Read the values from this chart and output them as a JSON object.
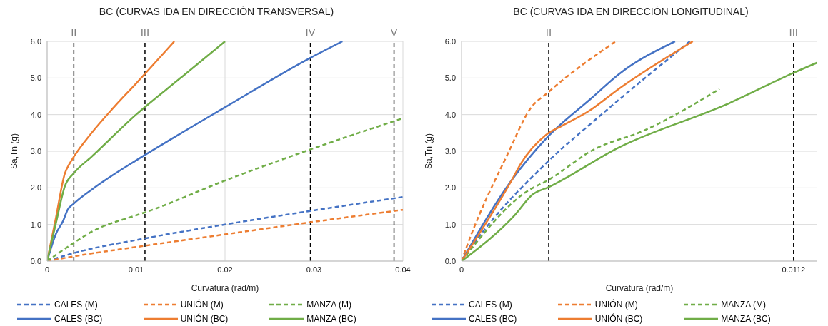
{
  "chart_data": [
    {
      "type": "line",
      "title": "BC (CURVAS IDA EN DIRECCIÓN TRANSVERSAL)",
      "xlabel": "Curvatura  (rad/m)",
      "ylabel": "Sa,Tn (g)",
      "xlim": [
        0,
        0.04
      ],
      "xticks": [
        0,
        0.01,
        0.02,
        0.03,
        0.04
      ],
      "ylim": [
        0,
        6
      ],
      "yticks": [
        {
          "value": 0,
          "label": "0.0"
        },
        {
          "value": 1,
          "label": "1.0"
        },
        {
          "value": 2,
          "label": "2.0"
        },
        {
          "value": 3,
          "label": "3.0"
        },
        {
          "value": 4,
          "label": "4.0"
        },
        {
          "value": 5,
          "label": "5.0"
        },
        {
          "value": 6,
          "label": "6.0"
        }
      ],
      "grid": true,
      "legend": "bottom",
      "marker": "none",
      "ref_lines": [
        {
          "axis": "x",
          "value": 0.003,
          "label": "II",
          "line_style": "dashed",
          "color": "#000000"
        },
        {
          "axis": "x",
          "value": 0.011,
          "label": "III",
          "line_style": "dashed",
          "color": "#000000"
        },
        {
          "axis": "x",
          "value": 0.0296,
          "label": "IV",
          "line_style": "dashed",
          "color": "#000000"
        },
        {
          "axis": "x",
          "value": 0.039,
          "label": "V",
          "line_style": "dashed",
          "color": "#000000"
        }
      ],
      "series": [
        {
          "name": "CALES (M)",
          "color": "#4472c4",
          "line_style": "dashed",
          "x": [
            0,
            0.003,
            0.011,
            0.02,
            0.0296,
            0.04
          ],
          "values": [
            0,
            0.22,
            0.62,
            1.0,
            1.37,
            1.75
          ]
        },
        {
          "name": "UNIÓN (M)",
          "color": "#ed7d31",
          "line_style": "dashed",
          "x": [
            0,
            0.003,
            0.011,
            0.02,
            0.0296,
            0.04
          ],
          "values": [
            0,
            0.13,
            0.42,
            0.73,
            1.06,
            1.4
          ]
        },
        {
          "name": "MANZA (M)",
          "color": "#70ad47",
          "line_style": "dashed",
          "x": [
            0,
            0.003,
            0.005,
            0.01,
            0.011,
            0.02,
            0.0296,
            0.04
          ],
          "values": [
            0,
            0.5,
            0.8,
            1.25,
            1.33,
            2.2,
            3.05,
            3.9
          ]
        },
        {
          "name": "CALES (BC)",
          "color": "#4472c4",
          "line_style": "solid",
          "x": [
            0,
            0.001,
            0.0018,
            0.0023,
            0.003,
            0.005,
            0.01,
            0.011,
            0.02,
            0.0296,
            0.0332
          ],
          "values": [
            0,
            0.75,
            1.1,
            1.4,
            1.57,
            1.95,
            2.75,
            2.9,
            4.2,
            5.55,
            6.0
          ]
        },
        {
          "name": "UNIÓN (BC)",
          "color": "#ed7d31",
          "line_style": "solid",
          "x": [
            0,
            0.001,
            0.002,
            0.0025,
            0.003,
            0.005,
            0.0075,
            0.01,
            0.0143
          ],
          "values": [
            0,
            1.2,
            2.4,
            2.65,
            2.85,
            3.5,
            4.2,
            4.85,
            6.0
          ]
        },
        {
          "name": "MANZA (BC)",
          "color": "#70ad47",
          "line_style": "solid",
          "x": [
            0,
            0.001,
            0.002,
            0.003,
            0.005,
            0.01,
            0.015,
            0.02
          ],
          "values": [
            0,
            1.05,
            2.05,
            2.4,
            2.85,
            4.0,
            5.0,
            6.0
          ]
        }
      ]
    },
    {
      "type": "line",
      "title": "BC (CURVAS IDA EN DIRECCIÓN LONGITUDINAL)",
      "xlabel": "Curvatura  (rad/m)",
      "ylabel": "Sa,Tn (g)",
      "xlim": [
        0,
        0.012
      ],
      "xticks": [
        0,
        0.0112
      ],
      "ylim": [
        0,
        6
      ],
      "yticks": [
        {
          "value": 0,
          "label": "0.0"
        },
        {
          "value": 1,
          "label": "1.0"
        },
        {
          "value": 2,
          "label": "2.0"
        },
        {
          "value": 3,
          "label": "3.0"
        },
        {
          "value": 4,
          "label": "4.0"
        },
        {
          "value": 5,
          "label": "5.0"
        },
        {
          "value": 6,
          "label": "6.0"
        }
      ],
      "grid": "y",
      "legend": "bottom",
      "marker": "none",
      "ref_lines": [
        {
          "axis": "x",
          "value": 0.00294,
          "label": "II",
          "line_style": "dashed",
          "color": "#000000"
        },
        {
          "axis": "x",
          "value": 0.0112,
          "label": "III",
          "line_style": "dashed",
          "color": "#000000"
        }
      ],
      "series": [
        {
          "name": "CALES (M)",
          "color": "#4472c4",
          "line_style": "dashed",
          "x": [
            0,
            0.0004,
            0.00294,
            0.0044,
            0.0077
          ],
          "values": [
            0,
            0.46,
            2.74,
            3.78,
            6.0
          ]
        },
        {
          "name": "UNIÓN (M)",
          "color": "#ed7d31",
          "line_style": "dashed",
          "x": [
            0,
            0.0002,
            0.0016,
            0.0023,
            0.00294,
            0.0052
          ],
          "values": [
            0,
            0.45,
            3.0,
            4.14,
            4.62,
            6.0
          ]
        },
        {
          "name": "MANZA (M)",
          "color": "#70ad47",
          "line_style": "dashed",
          "x": [
            0,
            0.0022,
            0.00294,
            0.0044,
            0.0062,
            0.0087
          ],
          "values": [
            0,
            1.9,
            2.22,
            3.02,
            3.58,
            4.7
          ]
        },
        {
          "name": "CALES (BC)",
          "color": "#4472c4",
          "line_style": "solid",
          "x": [
            0,
            0.0017,
            0.00294,
            0.0044,
            0.0053,
            0.0072
          ],
          "values": [
            0,
            2.22,
            3.42,
            4.46,
            5.1,
            6.0
          ]
        },
        {
          "name": "UNIÓN (BC)",
          "color": "#ed7d31",
          "line_style": "solid",
          "x": [
            0,
            0.0017,
            0.002,
            0.00294,
            0.0034,
            0.0043,
            0.0053,
            0.0078
          ],
          "values": [
            0,
            2.22,
            2.66,
            3.5,
            3.7,
            4.1,
            4.7,
            6.0
          ]
        },
        {
          "name": "MANZA (BC)",
          "color": "#70ad47",
          "line_style": "solid",
          "x": [
            0,
            0.0018,
            0.0024,
            0.00294,
            0.0053,
            0.009,
            0.0112,
            0.012
          ],
          "values": [
            0,
            1.26,
            1.82,
            2.02,
            3.1,
            4.3,
            5.14,
            5.42
          ]
        }
      ]
    }
  ]
}
